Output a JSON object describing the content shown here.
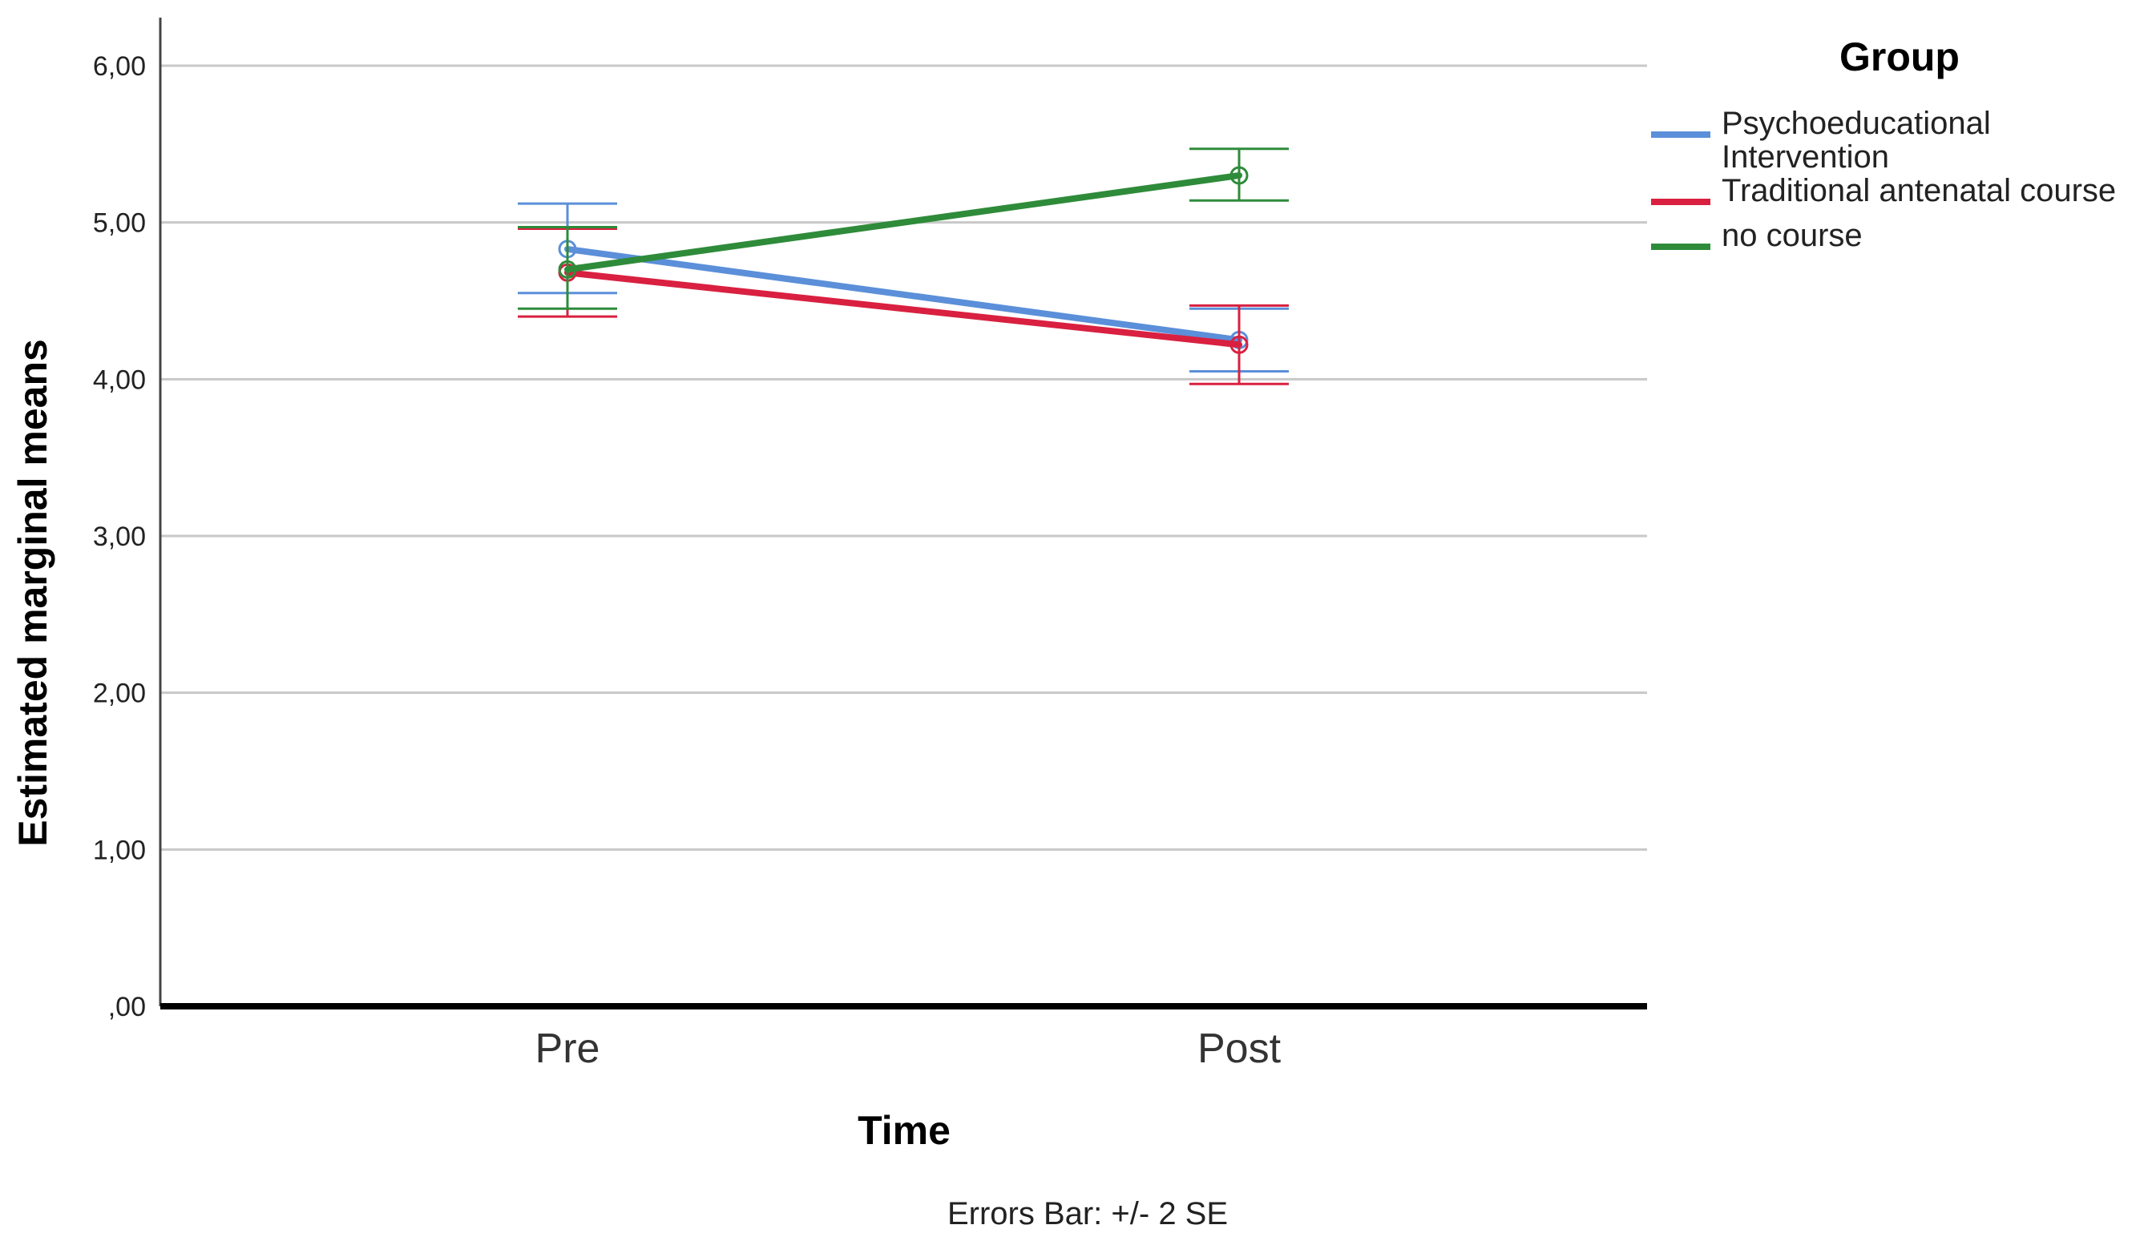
{
  "chart_data": {
    "type": "line",
    "xlabel": "Time",
    "ylabel": "Estimated marginal means",
    "categories": [
      "Pre",
      "Post"
    ],
    "ylim": [
      0,
      6
    ],
    "yticks": [
      {
        "value": 0,
        "label": ",00"
      },
      {
        "value": 1,
        "label": "1,00"
      },
      {
        "value": 2,
        "label": "2,00"
      },
      {
        "value": 3,
        "label": "3,00"
      },
      {
        "value": 4,
        "label": "4,00"
      },
      {
        "value": 5,
        "label": "5,00"
      },
      {
        "value": 6,
        "label": "6,00"
      }
    ],
    "grid": true,
    "legend_title": "Group",
    "legend_position": "top-right",
    "footnote": "Errors Bar: +/- 2 SE",
    "series": [
      {
        "name": "Psychoeducational Intervention",
        "legend_lines": [
          "Psychoeducational",
          "Intervention"
        ],
        "color": "#5b8fd9",
        "values": [
          4.83,
          4.25
        ],
        "err_low": [
          4.55,
          4.05
        ],
        "err_high": [
          5.12,
          4.45
        ]
      },
      {
        "name": "Traditional antenatal course",
        "legend_lines": [
          "Traditional antenatal course"
        ],
        "color": "#d92040",
        "values": [
          4.68,
          4.22
        ],
        "err_low": [
          4.4,
          3.97
        ],
        "err_high": [
          4.96,
          4.47
        ]
      },
      {
        "name": "no course",
        "legend_lines": [
          "no course"
        ],
        "color": "#2e8b3a",
        "values": [
          4.7,
          5.3
        ],
        "err_low": [
          4.45,
          5.14
        ],
        "err_high": [
          4.97,
          5.47
        ]
      }
    ]
  }
}
